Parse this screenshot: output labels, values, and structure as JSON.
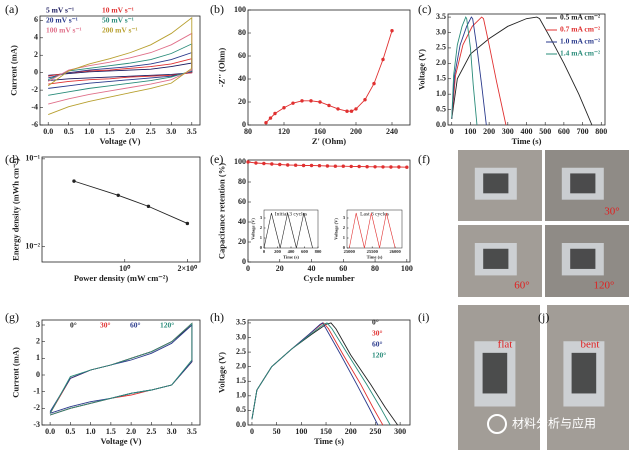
{
  "chart_data": [
    {
      "panel": "(a)",
      "type": "line",
      "xlabel": "Voltage (V)",
      "ylabel": "Current (mA)",
      "xlim": [
        -0.2,
        3.7
      ],
      "ylim": [
        -6,
        6.5
      ],
      "xticks": [
        {
          "value": 0,
          "label": "0.0"
        },
        0.5,
        {
          "value": 1,
          "label": "1.0"
        },
        1.5,
        {
          "value": 2,
          "label": "2.0"
        },
        2.5,
        {
          "value": 3,
          "label": "3.0"
        },
        3.5
      ],
      "yticks": [
        -6,
        -4,
        -2,
        0,
        2,
        4,
        6
      ],
      "x": [
        0,
        0.5,
        1,
        1.5,
        2,
        2.5,
        3,
        3.5,
        3.5,
        3,
        2.5,
        2,
        1.5,
        1,
        0.5,
        0
      ],
      "series": [
        {
          "name": "5 mV s⁻¹",
          "color": "#1a1a5e",
          "values": [
            -0.3,
            -0.1,
            0.1,
            0.2,
            0.3,
            0.4,
            0.7,
            1.1,
            0,
            -0.2,
            -0.3,
            -0.4,
            -0.5,
            -0.6,
            -0.7,
            -0.9
          ]
        },
        {
          "name": "10 mV s⁻¹",
          "color": "#e03030",
          "values": [
            -0.4,
            0,
            0.2,
            0.3,
            0.5,
            0.7,
            1,
            1.6,
            0,
            -0.3,
            -0.4,
            -0.5,
            -0.7,
            -0.8,
            -1,
            -1.3
          ]
        },
        {
          "name": "20 mV s⁻¹",
          "color": "#2a3a8c",
          "values": [
            -0.6,
            0,
            0.3,
            0.5,
            0.7,
            1,
            1.5,
            2.3,
            0.1,
            -0.4,
            -0.6,
            -0.8,
            -1,
            -1.2,
            -1.5,
            -1.8
          ]
        },
        {
          "name": "50 mV s⁻¹",
          "color": "#2a8c7a",
          "values": [
            -0.8,
            0.2,
            0.5,
            0.8,
            1.1,
            1.5,
            2.2,
            3.3,
            0.2,
            -0.5,
            -0.9,
            -1.2,
            -1.5,
            -1.8,
            -2.2,
            -2.6
          ]
        },
        {
          "name": "100 mV s⁻¹",
          "color": "#e0708a",
          "values": [
            -1,
            0.3,
            0.8,
            1.2,
            1.7,
            2.3,
            3.2,
            4.5,
            0.3,
            -0.8,
            -1.3,
            -1.7,
            -2.1,
            -2.5,
            -3,
            -3.6
          ]
        },
        {
          "name": "200 mV s⁻¹",
          "color": "#b8a030",
          "values": [
            -1.5,
            0.2,
            1,
            1.6,
            2.3,
            3.2,
            4.5,
            6.3,
            0.5,
            -1.2,
            -1.8,
            -2.3,
            -2.8,
            -3.3,
            -3.9,
            -4.8
          ]
        }
      ]
    },
    {
      "panel": "(b)",
      "type": "line",
      "markers": true,
      "xlabel": "Z' (Ohm)",
      "ylabel": "-Z'' (Ohm)",
      "xlim": [
        80,
        260
      ],
      "ylim": [
        0,
        100
      ],
      "xticks": [
        80,
        120,
        160,
        200,
        240
      ],
      "yticks": [
        0,
        20,
        40,
        60,
        80,
        100
      ],
      "x": [
        100,
        105,
        110,
        120,
        130,
        140,
        150,
        160,
        170,
        180,
        190,
        195,
        200,
        210,
        220,
        230,
        240
      ],
      "series": [
        {
          "color": "#e03030",
          "values": [
            2,
            6,
            10,
            15,
            19,
            21,
            21,
            20,
            17,
            14,
            12,
            12,
            14,
            22,
            36,
            57,
            82
          ]
        }
      ]
    },
    {
      "panel": "(c)",
      "type": "line",
      "xlabel": "Time (s)",
      "ylabel": "Voltage (V)",
      "xlim": [
        -20,
        820
      ],
      "ylim": [
        0,
        3.6
      ],
      "xticks": [
        0,
        100,
        200,
        300,
        400,
        500,
        600,
        700,
        800
      ],
      "yticks": [
        {
          "value": 0,
          "label": "0.0"
        },
        0.5,
        {
          "value": 1,
          "label": "1.0"
        },
        1.5,
        {
          "value": 2,
          "label": "2.0"
        },
        2.5,
        {
          "value": 3,
          "label": "3.0"
        },
        3.5
      ],
      "series": [
        {
          "name": "0.5 mA cm⁻²",
          "color": "#222222",
          "x": [
            0,
            30,
            100,
            200,
            300,
            400,
            455,
            470,
            530,
            600,
            680,
            750
          ],
          "values": [
            0.2,
            1.5,
            2.3,
            2.8,
            3.2,
            3.45,
            3.5,
            3.45,
            2.8,
            2,
            1,
            0
          ]
        },
        {
          "name": "0.7 mA cm⁻²",
          "color": "#e03030",
          "x": [
            0,
            20,
            60,
            110,
            160,
            170,
            200,
            240,
            290
          ],
          "values": [
            0.2,
            1.6,
            2.6,
            3.2,
            3.5,
            3.45,
            2.6,
            1.4,
            0
          ]
        },
        {
          "name": "1.0 mA cm⁻²",
          "color": "#2a3a8c",
          "x": [
            0,
            15,
            45,
            80,
            105,
            112,
            135,
            160,
            185
          ],
          "values": [
            0.2,
            1.6,
            2.6,
            3.2,
            3.5,
            3.45,
            2.5,
            1.3,
            0
          ]
        },
        {
          "name": "1.4 mA cm⁻²",
          "color": "#2a8c7a",
          "x": [
            0,
            10,
            30,
            55,
            75,
            80,
            100,
            115,
            135
          ],
          "values": [
            0.2,
            1.6,
            2.6,
            3.2,
            3.5,
            3.45,
            2.5,
            1.3,
            0
          ]
        }
      ]
    },
    {
      "panel": "(d)",
      "type": "line",
      "markers": true,
      "xscale": "log",
      "yscale": "log",
      "xlabel": "Power density (mW cm⁻²)",
      "ylabel": "Energy density (mWh cm⁻²)",
      "xlim": [
        0.4,
        2.3
      ],
      "ylim": [
        0.0067,
        0.105
      ],
      "xticks": [
        {
          "value": 1,
          "label": "10⁰"
        },
        {
          "value": 2,
          "label": "2×10⁰"
        }
      ],
      "yticks": [
        {
          "value": 0.1,
          "label": "10⁻¹"
        },
        {
          "value": 0.01,
          "label": "10⁻²"
        }
      ],
      "x": [
        0.57,
        0.93,
        1.3,
        2
      ],
      "series": [
        {
          "color": "#222222",
          "values": [
            0.0558,
            0.0385,
            0.0288,
            0.0184
          ]
        }
      ]
    },
    {
      "panel": "(e)",
      "type": "line",
      "markers": true,
      "xlabel": "Cycle number",
      "ylabel": "Capacitance retention (%)",
      "xlim": [
        0,
        102
      ],
      "ylim": [
        0,
        102
      ],
      "xticks": [
        0,
        20,
        40,
        60,
        80,
        100
      ],
      "yticks": [
        0,
        20,
        40,
        60,
        80,
        100
      ],
      "x": [
        0,
        5,
        10,
        15,
        20,
        25,
        30,
        35,
        40,
        45,
        50,
        55,
        60,
        65,
        70,
        75,
        80,
        85,
        90,
        95,
        100
      ],
      "series": [
        {
          "color": "#e03030",
          "values": [
            100,
            99,
            98.5,
            98,
            97.5,
            97,
            96.8,
            96.5,
            96.5,
            96.3,
            96,
            95.8,
            95.8,
            95.6,
            95.5,
            95.3,
            95.2,
            95.1,
            95,
            95,
            94.8
          ]
        }
      ]
    },
    {
      "type": "line",
      "title": "Initial 3 cycles",
      "xlabel": "Time (s)",
      "ylabel": "Voltage (V)",
      "xlim": [
        0,
        800
      ],
      "ylim": [
        0,
        3.8
      ],
      "xticks": [
        0,
        200,
        400,
        600,
        800
      ],
      "yticks": [
        0,
        1,
        2,
        3
      ],
      "x": [
        0,
        110,
        240,
        350,
        480,
        590,
        720
      ],
      "series": [
        {
          "color": "#222222",
          "values": [
            0,
            3.5,
            0,
            3.5,
            0,
            3.5,
            0
          ]
        }
      ]
    },
    {
      "type": "line",
      "title": "Last 3 cycles",
      "xlabel": "Time (s)",
      "ylabel": "Voltage (V)",
      "xlim": [
        24950,
        26150
      ],
      "ylim": [
        0,
        3.8
      ],
      "xticks": [
        25000,
        25500,
        26000
      ],
      "yticks": [
        0,
        1,
        2,
        3
      ],
      "x": [
        25000,
        25150,
        25330,
        25480,
        25660,
        25810,
        26000
      ],
      "series": [
        {
          "color": "#e03030",
          "values": [
            0,
            3.5,
            0,
            3.5,
            0,
            3.5,
            0
          ]
        }
      ]
    },
    {
      "panel": "(f)",
      "type": "photo",
      "labels": [
        "30°",
        "60°",
        "120°"
      ]
    },
    {
      "panel": "(g)",
      "type": "line",
      "xlabel": "Voltage (V)",
      "ylabel": "Current (mA)",
      "xlim": [
        -0.2,
        3.7
      ],
      "ylim": [
        -3,
        3.3
      ],
      "xticks": [
        {
          "value": 0,
          "label": "0.0"
        },
        0.5,
        {
          "value": 1,
          "label": "1.0"
        },
        1.5,
        {
          "value": 2,
          "label": "2.0"
        },
        2.5,
        {
          "value": 3,
          "label": "3.0"
        },
        3.5
      ],
      "yticks": [
        -3,
        -2,
        -1,
        0,
        1,
        2,
        3
      ],
      "x": [
        0,
        0.5,
        1,
        1.5,
        2,
        2.5,
        3,
        3.5,
        3.5,
        3,
        2.5,
        2,
        1.5,
        1,
        0.5,
        0
      ],
      "series": [
        {
          "name": "0°",
          "color": "#222222",
          "values": [
            -2.3,
            -0.2,
            0.3,
            0.6,
            1,
            1.4,
            2,
            3,
            0.8,
            -0.6,
            -0.9,
            -1.1,
            -1.4,
            -1.7,
            -2,
            -2.4
          ]
        },
        {
          "name": "30°",
          "color": "#e03030",
          "values": [
            -2.3,
            -0.2,
            0.3,
            0.6,
            1,
            1.4,
            2,
            3.1,
            0.8,
            -0.6,
            -0.9,
            -1.2,
            -1.4,
            -1.7,
            -2,
            -2.4
          ]
        },
        {
          "name": "60°",
          "color": "#2a3a8c",
          "values": [
            -2.2,
            -0.2,
            0.3,
            0.6,
            0.9,
            1.3,
            1.9,
            3,
            0.8,
            -0.6,
            -0.9,
            -1.1,
            -1.4,
            -1.6,
            -1.9,
            -2.3
          ]
        },
        {
          "name": "120°",
          "color": "#2a8c7a",
          "values": [
            -2.3,
            -0.1,
            0.3,
            0.6,
            1,
            1.4,
            2,
            3.1,
            0.9,
            -0.6,
            -0.9,
            -1.1,
            -1.4,
            -1.7,
            -2,
            -2.4
          ]
        }
      ]
    },
    {
      "panel": "(h)",
      "type": "line",
      "xlabel": "Time (s)",
      "ylabel": "Voltage (V)",
      "xlim": [
        -8,
        320
      ],
      "ylim": [
        0,
        3.6
      ],
      "xticks": [
        0,
        50,
        100,
        150,
        200,
        250,
        300
      ],
      "yticks": [
        {
          "value": 0,
          "label": "0.0"
        },
        0.5,
        {
          "value": 1,
          "label": "1.0"
        },
        1.5,
        {
          "value": 2,
          "label": "2.0"
        },
        2.5,
        {
          "value": 3,
          "label": "3.0"
        },
        3.5
      ],
      "series": [
        {
          "name": "0°",
          "color": "#222222",
          "x": [
            0,
            10,
            40,
            80,
            120,
            150,
            160,
            170,
            200,
            240,
            270,
            295
          ],
          "values": [
            0.2,
            1.2,
            2,
            2.6,
            3.1,
            3.45,
            3.5,
            3.3,
            2.4,
            1.4,
            0.6,
            0
          ]
        },
        {
          "name": "30°",
          "color": "#e03030",
          "x": [
            0,
            10,
            40,
            80,
            115,
            140,
            145,
            155,
            185,
            220,
            245,
            265
          ],
          "values": [
            0.2,
            1.2,
            2,
            2.6,
            3.1,
            3.45,
            3.5,
            3.3,
            2.4,
            1.4,
            0.6,
            0
          ]
        },
        {
          "name": "60°",
          "color": "#2a3a8c",
          "x": [
            0,
            10,
            40,
            80,
            115,
            138,
            143,
            150,
            180,
            212,
            237,
            255
          ],
          "values": [
            0.2,
            1.2,
            2,
            2.6,
            3.1,
            3.45,
            3.5,
            3.3,
            2.4,
            1.4,
            0.6,
            0
          ]
        },
        {
          "name": "120°",
          "color": "#2a8c7a",
          "x": [
            0,
            10,
            40,
            80,
            118,
            145,
            152,
            162,
            195,
            232,
            260,
            280
          ],
          "values": [
            0.2,
            1.2,
            2,
            2.6,
            3.1,
            3.45,
            3.5,
            3.3,
            2.4,
            1.4,
            0.6,
            0
          ]
        }
      ]
    },
    {
      "panel": "(i)",
      "type": "photo",
      "labels": [
        "flat"
      ]
    },
    {
      "panel": "(j)",
      "type": "photo",
      "labels": [
        "bent"
      ]
    }
  ],
  "watermark": "材料分析与应用"
}
